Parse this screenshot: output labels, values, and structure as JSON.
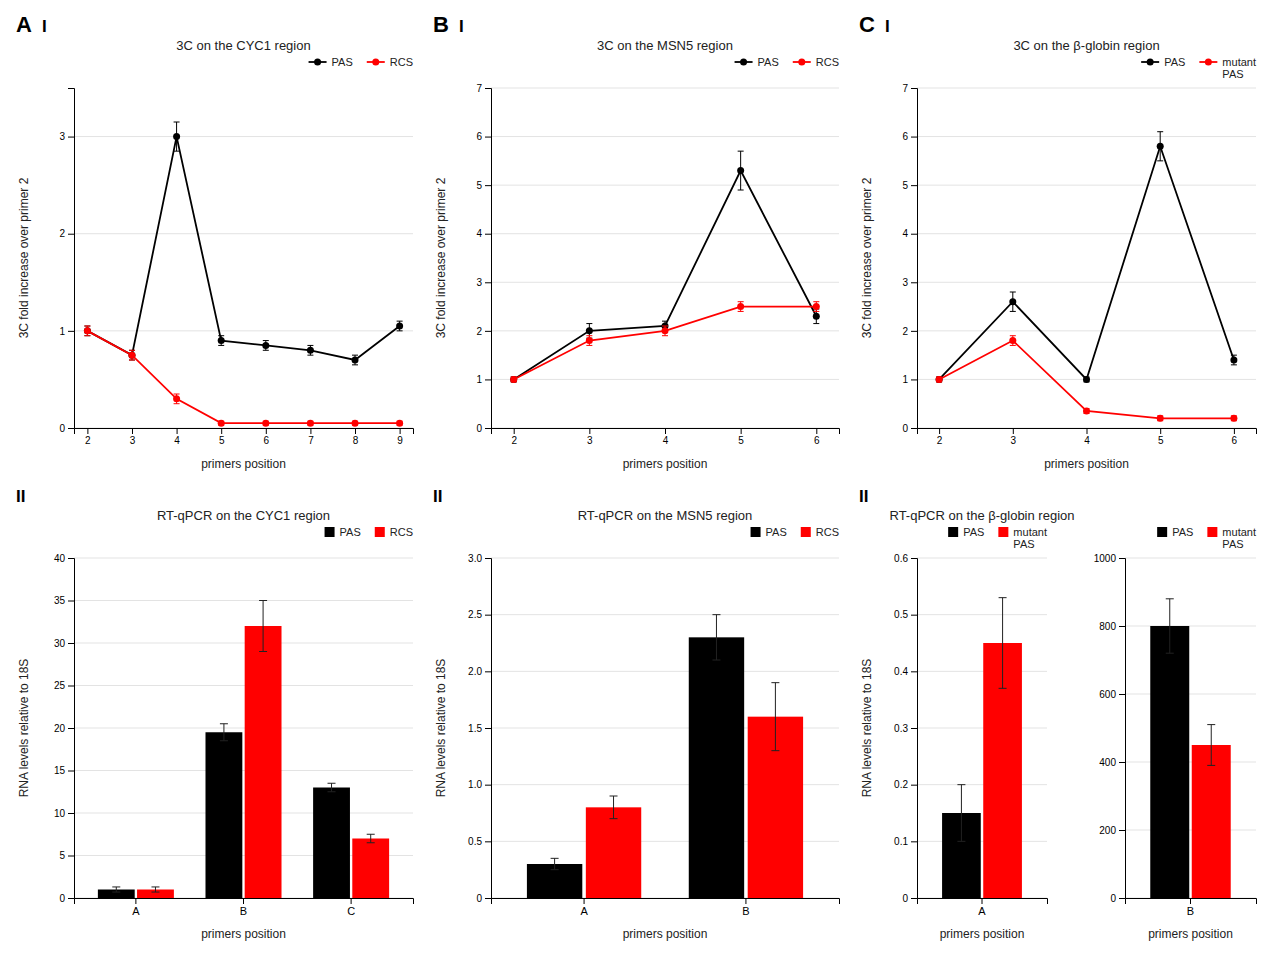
{
  "chart_data": [
    {
      "type": "line",
      "title": "3C on the CYC1 region",
      "annotations": [
        "A",
        "I"
      ],
      "xlabel": "primers position",
      "ylabel": "3C fold increase over primer 2",
      "x": [
        2,
        3,
        4,
        5,
        6,
        7,
        8,
        9
      ],
      "xlim": [
        1.7,
        9.3
      ],
      "xticks": [
        2,
        3,
        4,
        5,
        6,
        7,
        8,
        9
      ],
      "ylim": [
        0,
        3.5
      ],
      "yticks": [
        0,
        1,
        2,
        3
      ],
      "grid": "y",
      "legend": "upper right",
      "marker": "circle",
      "series": [
        {
          "name": "PAS",
          "color": "black",
          "values": [
            1.0,
            0.75,
            3.0,
            0.9,
            0.85,
            0.8,
            0.7,
            1.05
          ],
          "errors": [
            0.05,
            0.05,
            0.15,
            0.05,
            0.05,
            0.05,
            0.05,
            0.05
          ]
        },
        {
          "name": "RCS",
          "color": "red",
          "values": [
            1.0,
            0.75,
            0.3,
            0.05,
            0.05,
            0.05,
            0.05,
            0.05
          ],
          "errors": [
            0.05,
            0.05,
            0.05,
            0.02,
            0.02,
            0.02,
            0.02,
            0.02
          ]
        }
      ]
    },
    {
      "type": "bar",
      "title": "RT-qPCR on the CYC1 region",
      "annotations": [
        "II"
      ],
      "xlabel": "primers position",
      "ylabel": "RNA levels relative to 18S",
      "categories": [
        "A",
        "B",
        "C"
      ],
      "ylim": [
        0,
        40
      ],
      "yticks": [
        0,
        5,
        10,
        15,
        20,
        25,
        30,
        35,
        40
      ],
      "grid": "y",
      "legend": "upper right",
      "series": [
        {
          "name": "PAS",
          "color": "black",
          "values": [
            1.0,
            19.5,
            13.0
          ],
          "errors": [
            0.3,
            1.0,
            0.5
          ]
        },
        {
          "name": "RCS",
          "color": "red",
          "values": [
            1.0,
            32.0,
            7.0
          ],
          "errors": [
            0.3,
            3.0,
            0.5
          ]
        }
      ]
    },
    {
      "type": "line",
      "title": "3C on the MSN5 region",
      "annotations": [
        "B",
        "I"
      ],
      "xlabel": "primers position",
      "ylabel": "3C fold increase over primer 2",
      "x": [
        2,
        3,
        4,
        5,
        6
      ],
      "xlim": [
        1.7,
        6.3
      ],
      "xticks": [
        2,
        3,
        4,
        5,
        6
      ],
      "ylim": [
        0,
        7
      ],
      "yticks": [
        0,
        1,
        2,
        3,
        4,
        5,
        6,
        7
      ],
      "grid": "y",
      "legend": "upper right",
      "marker": "circle",
      "series": [
        {
          "name": "PAS",
          "color": "black",
          "values": [
            1.0,
            2.0,
            2.1,
            5.3,
            2.3
          ],
          "errors": [
            0.05,
            0.15,
            0.1,
            0.4,
            0.15
          ]
        },
        {
          "name": "RCS",
          "color": "red",
          "values": [
            1.0,
            1.8,
            2.0,
            2.5,
            2.5
          ],
          "errors": [
            0.05,
            0.1,
            0.1,
            0.1,
            0.1
          ]
        }
      ]
    },
    {
      "type": "bar",
      "title": "RT-qPCR on the MSN5 region",
      "annotations": [
        "II"
      ],
      "xlabel": "primers position",
      "ylabel": "RNA levels relative to 18S",
      "categories": [
        "A",
        "B"
      ],
      "ylim": [
        0,
        3
      ],
      "yticks": [
        0,
        0.5,
        {
          "value": 1.0,
          "label": "1.0"
        },
        1.5,
        {
          "value": 2.0,
          "label": "2.0"
        },
        2.5,
        {
          "value": 3.0,
          "label": "3.0"
        }
      ],
      "grid": "y",
      "legend": "upper right",
      "series": [
        {
          "name": "PAS",
          "color": "black",
          "values": [
            0.3,
            2.3
          ],
          "errors": [
            0.05,
            0.2
          ]
        },
        {
          "name": "RCS",
          "color": "red",
          "values": [
            0.8,
            1.6
          ],
          "errors": [
            0.1,
            0.3
          ]
        }
      ]
    },
    {
      "type": "line",
      "title": "3C on the β-globin region",
      "annotations": [
        "C",
        "I"
      ],
      "xlabel": "primers position",
      "ylabel": "3C fold increase over primer 2",
      "x": [
        2,
        3,
        4,
        5,
        6
      ],
      "xlim": [
        1.7,
        6.3
      ],
      "xticks": [
        2,
        3,
        4,
        5,
        6
      ],
      "ylim": [
        0,
        7
      ],
      "yticks": [
        0,
        1,
        2,
        3,
        4,
        5,
        6,
        7
      ],
      "grid": "y",
      "legend": "upper right",
      "marker": "circle",
      "series": [
        {
          "name": "PAS",
          "color": "black",
          "values": [
            1.0,
            2.6,
            1.0,
            5.8,
            1.4
          ],
          "errors": [
            0.05,
            0.2,
            0.05,
            0.3,
            0.1
          ]
        },
        {
          "name": "mutant\nPAS",
          "color": "red",
          "values": [
            1.0,
            1.8,
            0.35,
            0.2,
            0.2
          ],
          "errors": [
            0.05,
            0.1,
            0.05,
            0.05,
            0.05
          ]
        }
      ]
    },
    {
      "type": "bar",
      "title": "RT-qPCR on the β-globin region",
      "annotations": [
        "II"
      ],
      "xlabel": "primers position",
      "ylabel": "RNA levels relative to 18S",
      "categories": [
        "A"
      ],
      "ylim": [
        0,
        0.6
      ],
      "yticks": [
        0,
        0.1,
        0.2,
        0.3,
        0.4,
        0.5,
        0.6
      ],
      "grid": "y",
      "legend": "upper right",
      "series": [
        {
          "name": "PAS",
          "color": "black",
          "values": [
            0.15
          ],
          "errors": [
            0.05
          ]
        },
        {
          "name": "mutant\nPAS",
          "color": "red",
          "values": [
            0.45
          ],
          "errors": [
            0.08
          ]
        }
      ]
    },
    {
      "type": "bar",
      "xlabel": "primers position",
      "categories": [
        "B"
      ],
      "ylim": [
        0,
        1000
      ],
      "yticks": [
        0,
        200,
        400,
        600,
        800,
        1000
      ],
      "grid": "y",
      "legend": "upper right",
      "series": [
        {
          "name": "PAS",
          "color": "black",
          "values": [
            800
          ],
          "errors": [
            80
          ]
        },
        {
          "name": "mutant\nPAS",
          "color": "red",
          "values": [
            450
          ],
          "errors": [
            60
          ]
        }
      ]
    }
  ]
}
